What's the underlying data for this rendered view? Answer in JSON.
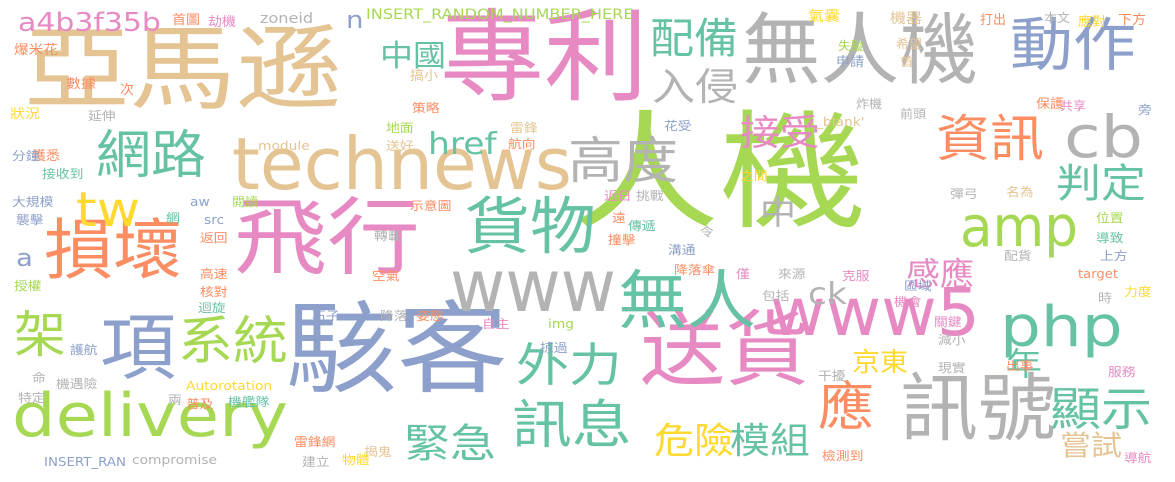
{
  "palette": {
    "pink": "#e78ac3",
    "tan": "#e5c494",
    "blue": "#8da0cb",
    "green": "#a6d854",
    "teal": "#66c2a5",
    "orange": "#fc8d62",
    "yellow": "#ffd92f",
    "gray": "#b3b3b3"
  },
  "words": [
    {
      "text": "人機",
      "color": "#a6d854"
    },
    {
      "text": "亞馬遜",
      "color": "#e5c494"
    },
    {
      "text": "專利",
      "color": "#e78ac3"
    },
    {
      "text": "駭客",
      "color": "#8da0cb"
    },
    {
      "text": "飛行",
      "color": "#e78ac3"
    },
    {
      "text": "technews",
      "color": "#e5c494"
    },
    {
      "text": "無人機",
      "color": "#b3b3b3"
    },
    {
      "text": "送貨",
      "color": "#e78ac3"
    },
    {
      "text": "訊號",
      "color": "#b3b3b3"
    },
    {
      "text": "www",
      "color": "#b3b3b3"
    },
    {
      "text": "www5",
      "color": "#e78ac3"
    },
    {
      "text": "delivery",
      "color": "#a6d854"
    },
    {
      "text": "php",
      "color": "#66c2a5"
    },
    {
      "text": "損壞",
      "color": "#fc8d62"
    },
    {
      "text": "無人",
      "color": "#66c2a5"
    },
    {
      "text": "動作",
      "color": "#8da0cb"
    },
    {
      "text": "貨物",
      "color": "#66c2a5"
    },
    {
      "text": "項",
      "color": "#8da0cb"
    },
    {
      "text": "amp",
      "color": "#a6d854"
    },
    {
      "text": "高度",
      "color": "#b3b3b3"
    },
    {
      "text": "網路",
      "color": "#66c2a5"
    },
    {
      "text": "資訊",
      "color": "#fc8d62"
    },
    {
      "text": "cb",
      "color": "#b3b3b3"
    },
    {
      "text": "系統",
      "color": "#a6d854"
    },
    {
      "text": "外力",
      "color": "#66c2a5"
    },
    {
      "text": "訊息",
      "color": "#66c2a5"
    },
    {
      "text": "應",
      "color": "#fc8d62"
    },
    {
      "text": "配備",
      "color": "#66c2a5"
    },
    {
      "text": "入侵",
      "color": "#b3b3b3"
    },
    {
      "text": "顯示",
      "color": "#66c2a5"
    },
    {
      "text": "tw",
      "color": "#ffd92f"
    },
    {
      "text": "a4b3f35b",
      "color": "#e78ac3"
    },
    {
      "text": "架",
      "color": "#a6d854"
    },
    {
      "text": "判定",
      "color": "#66c2a5"
    },
    {
      "text": "接受",
      "color": "#e78ac3"
    },
    {
      "text": "緊急",
      "color": "#66c2a5"
    },
    {
      "text": "危險",
      "color": "#ffd92f"
    },
    {
      "text": "模組",
      "color": "#66c2a5"
    },
    {
      "text": "感應",
      "color": "#e78ac3"
    },
    {
      "text": "中",
      "color": "#b3b3b3"
    },
    {
      "text": "href",
      "color": "#66c2a5"
    },
    {
      "text": "京東",
      "color": "#ffd92f"
    },
    {
      "text": "嘗試",
      "color": "#e5c494"
    },
    {
      "text": "中國",
      "color": "#66c2a5"
    },
    {
      "text": "ck",
      "color": "#b3b3b3"
    },
    {
      "text": "年",
      "color": "#66c2a5"
    },
    {
      "text": "a",
      "color": "#8da0cb"
    },
    {
      "text": "n",
      "color": "#8da0cb"
    },
    {
      "text": "INSERT_RANDOM_NUMBER_HERE",
      "color": "#a6d854"
    },
    {
      "text": "zoneid",
      "color": "#b3b3b3"
    },
    {
      "text": "首圖",
      "color": "#fc8d62"
    },
    {
      "text": "劫機",
      "color": "#e78ac3"
    },
    {
      "text": "氣囊",
      "color": "#ffd92f"
    },
    {
      "text": "機器",
      "color": "#e5c494"
    },
    {
      "text": "打出",
      "color": "#fc8d62"
    },
    {
      "text": "本文",
      "color": "#b3b3b3"
    },
    {
      "text": "應對",
      "color": "#ffd92f"
    },
    {
      "text": "下方",
      "color": "#fc8d62"
    },
    {
      "text": "爆米花",
      "color": "#fc8d62"
    },
    {
      "text": "數據",
      "color": "#fc8d62"
    },
    {
      "text": "次",
      "color": "#fc8d62"
    },
    {
      "text": "搞小",
      "color": "#e5c494"
    },
    {
      "text": "失蹤",
      "color": "#a6d854"
    },
    {
      "text": "希望",
      "color": "#e5c494"
    },
    {
      "text": "申請",
      "color": "#8da0cb"
    },
    {
      "text": "首",
      "color": "#e5c494"
    },
    {
      "text": "狀況",
      "color": "#ffd92f"
    },
    {
      "text": "延伸",
      "color": "#b3b3b3"
    },
    {
      "text": "策略",
      "color": "#fc8d62"
    },
    {
      "text": "炸機",
      "color": "#b3b3b3"
    },
    {
      "text": "前頭",
      "color": "#b3b3b3"
    },
    {
      "text": "保護",
      "color": "#fc8d62"
    },
    {
      "text": "共享",
      "color": "#e78ac3"
    },
    {
      "text": "旁",
      "color": "#8da0cb"
    },
    {
      "text": "雷鋒",
      "color": "#e5c494"
    },
    {
      "text": "地面",
      "color": "#a6d854"
    },
    {
      "text": "花受",
      "color": "#8da0cb"
    },
    {
      "text": "_blank'",
      "color": "#e5c494"
    },
    {
      "text": "獲悉",
      "color": "#fc8d62"
    },
    {
      "text": "分鐘",
      "color": "#8da0cb"
    },
    {
      "text": "module",
      "color": "#e5c494"
    },
    {
      "text": "送好",
      "color": "#e5c494"
    },
    {
      "text": "航向",
      "color": "#fc8d62"
    },
    {
      "text": "接收到",
      "color": "#66c2a5"
    },
    {
      "text": "近日",
      "color": "#e78ac3"
    },
    {
      "text": "挑戰",
      "color": "#b3b3b3"
    },
    {
      "text": "之間",
      "color": "#ffd92f"
    },
    {
      "text": "彈弓",
      "color": "#b3b3b3"
    },
    {
      "text": "名為",
      "color": "#e5c494"
    },
    {
      "text": "大規模",
      "color": "#8da0cb"
    },
    {
      "text": "aw",
      "color": "#8da0cb"
    },
    {
      "text": "閱讀",
      "color": "#a6d854"
    },
    {
      "text": "網",
      "color": "#66c2a5"
    },
    {
      "text": "src",
      "color": "#8da0cb"
    },
    {
      "text": "示意圖",
      "color": "#fc8d62"
    },
    {
      "text": "位置",
      "color": "#a6d854"
    },
    {
      "text": "襲擊",
      "color": "#8da0cb"
    },
    {
      "text": "遠",
      "color": "#fc8d62"
    },
    {
      "text": "傳遞",
      "color": "#66c2a5"
    },
    {
      "text": "令",
      "color": "#b3b3b3"
    },
    {
      "text": "導致",
      "color": "#66c2a5"
    },
    {
      "text": "轉載",
      "color": "#b3b3b3"
    },
    {
      "text": "返回",
      "color": "#fc8d62"
    },
    {
      "text": "撞擊",
      "color": "#fc8d62"
    },
    {
      "text": "溝通",
      "color": "#8da0cb"
    },
    {
      "text": "上方",
      "color": "#8da0cb"
    },
    {
      "text": "配貨",
      "color": "#b3b3b3"
    },
    {
      "text": "高速",
      "color": "#fc8d62"
    },
    {
      "text": "空氣",
      "color": "#fc8d62"
    },
    {
      "text": "降落傘",
      "color": "#fc8d62"
    },
    {
      "text": "僅",
      "color": "#e78ac3"
    },
    {
      "text": "來源",
      "color": "#b3b3b3"
    },
    {
      "text": "克服",
      "color": "#e78ac3"
    },
    {
      "text": "區域",
      "color": "#8da0cb"
    },
    {
      "text": "target",
      "color": "#fc8d62"
    },
    {
      "text": "授權",
      "color": "#a6d854"
    },
    {
      "text": "核對",
      "color": "#fc8d62"
    },
    {
      "text": "迴旋",
      "color": "#66c2a5"
    },
    {
      "text": "包括",
      "color": "#b3b3b3"
    },
    {
      "text": "機會",
      "color": "#e78ac3"
    },
    {
      "text": "力度",
      "color": "#ffd92f"
    },
    {
      "text": "時",
      "color": "#b3b3b3"
    },
    {
      "text": "關鍵",
      "color": "#e78ac3"
    },
    {
      "text": "石子",
      "color": "#8da0cb"
    },
    {
      "text": "降落",
      "color": "#b3b3b3"
    },
    {
      "text": "姿態",
      "color": "#fc8d62"
    },
    {
      "text": "護航",
      "color": "#8da0cb"
    },
    {
      "text": "自主",
      "color": "#e78ac3"
    },
    {
      "text": "img",
      "color": "#a6d854"
    },
    {
      "text": "減小",
      "color": "#b3b3b3"
    },
    {
      "text": "掠過",
      "color": "#8da0cb"
    },
    {
      "text": "命",
      "color": "#b3b3b3"
    },
    {
      "text": "機遇險",
      "color": "#b3b3b3"
    },
    {
      "text": "Autorotation",
      "color": "#ffd92f"
    },
    {
      "text": "干擾",
      "color": "#b3b3b3"
    },
    {
      "text": "現實",
      "color": "#b3b3b3"
    },
    {
      "text": "出事",
      "color": "#fc8d62"
    },
    {
      "text": "服務",
      "color": "#e78ac3"
    },
    {
      "text": "特定",
      "color": "#b3b3b3"
    },
    {
      "text": "兩",
      "color": "#b3b3b3"
    },
    {
      "text": "普及",
      "color": "#fc8d62"
    },
    {
      "text": "機艦隊",
      "color": "#66c2a5"
    },
    {
      "text": "雷鋒網",
      "color": "#fc8d62"
    },
    {
      "text": "揭鬼",
      "color": "#e5c494"
    },
    {
      "text": "INSERT_RAN",
      "color": "#8da0cb"
    },
    {
      "text": "compromise",
      "color": "#b3b3b3"
    },
    {
      "text": "建立",
      "color": "#b3b3b3"
    },
    {
      "text": "物體",
      "color": "#ffd92f"
    },
    {
      "text": "檢測到",
      "color": "#fc8d62"
    },
    {
      "text": "導航",
      "color": "#e78ac3"
    }
  ]
}
